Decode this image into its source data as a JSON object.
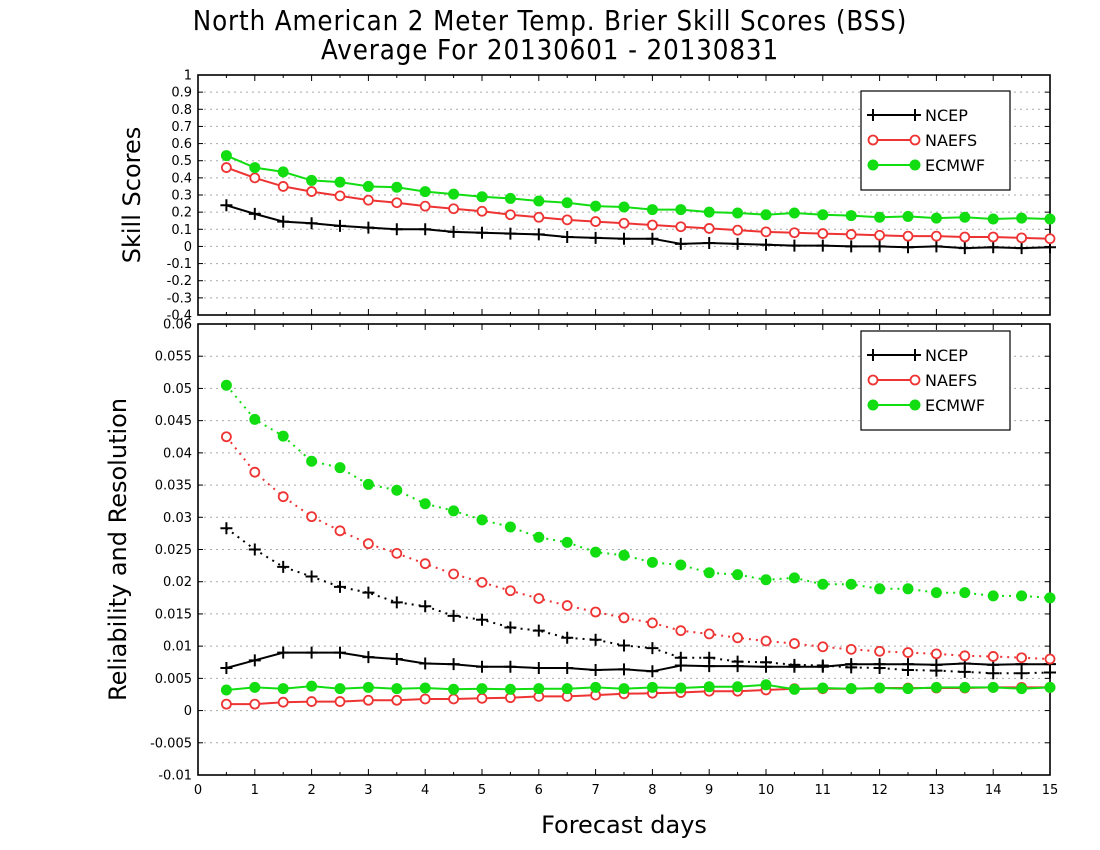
{
  "title_line1": "North American 2 Meter Temp. Brier Skill Scores (BSS)",
  "title_line2": "Average For 20130601 - 20130831",
  "colors": {
    "NCEP": "#000000",
    "NAEFS": "#ee3333",
    "ECMWF": "#11dd11",
    "grid": "#aaaaaa"
  },
  "chart_data": [
    {
      "type": "line",
      "ylabel": "Skill Scores",
      "xlabel": "",
      "xlim": [
        0,
        15
      ],
      "ylim": [
        -0.4,
        1
      ],
      "yticks": [
        "-0.4",
        "-0.3",
        "-0.2",
        "-0.1",
        "0",
        "0.1",
        "0.2",
        "0.3",
        "0.4",
        "0.5",
        "0.6",
        "0.7",
        "0.8",
        "0.9",
        "1"
      ],
      "grid": true,
      "legend": "top-right",
      "x": [
        0.5,
        1,
        1.5,
        2,
        2.5,
        3,
        3.5,
        4,
        4.5,
        5,
        5.5,
        6,
        6.5,
        7,
        7.5,
        8,
        8.5,
        9,
        9.5,
        10,
        10.5,
        11,
        11.5,
        12,
        12.5,
        13,
        13.5,
        14,
        14.5,
        15
      ],
      "series": [
        {
          "name": "NCEP",
          "marker": "plus",
          "style": "solid",
          "values": [
            0.24,
            0.19,
            0.145,
            0.135,
            0.12,
            0.11,
            0.1,
            0.1,
            0.085,
            0.08,
            0.075,
            0.07,
            0.055,
            0.05,
            0.045,
            0.045,
            0.015,
            0.02,
            0.015,
            0.01,
            0.005,
            0.005,
            0.0,
            0.0,
            -0.005,
            0.0,
            -0.01,
            -0.005,
            -0.01,
            -0.005
          ]
        },
        {
          "name": "NAEFS",
          "marker": "open-circle",
          "style": "solid",
          "values": [
            0.46,
            0.4,
            0.35,
            0.32,
            0.295,
            0.27,
            0.255,
            0.235,
            0.22,
            0.205,
            0.185,
            0.17,
            0.155,
            0.145,
            0.135,
            0.125,
            0.115,
            0.105,
            0.095,
            0.085,
            0.08,
            0.075,
            0.07,
            0.065,
            0.06,
            0.06,
            0.055,
            0.055,
            0.05,
            0.045
          ]
        },
        {
          "name": "ECMWF",
          "marker": "filled-circle",
          "style": "solid",
          "values": [
            0.53,
            0.46,
            0.435,
            0.385,
            0.375,
            0.35,
            0.345,
            0.32,
            0.305,
            0.29,
            0.28,
            0.265,
            0.255,
            0.235,
            0.23,
            0.215,
            0.215,
            0.2,
            0.195,
            0.185,
            0.195,
            0.185,
            0.18,
            0.17,
            0.175,
            0.165,
            0.17,
            0.16,
            0.165,
            0.16
          ]
        }
      ]
    },
    {
      "type": "line",
      "ylabel": "Reliability and Resolution",
      "xlabel": "Forecast days",
      "xlim": [
        0,
        15
      ],
      "ylim": [
        -0.01,
        0.06
      ],
      "yticks": [
        "-0.01",
        "-0.005",
        "0",
        "0.005",
        "0.01",
        "0.015",
        "0.02",
        "0.025",
        "0.03",
        "0.035",
        "0.04",
        "0.045",
        "0.05",
        "0.055",
        "0.06"
      ],
      "xticks": [
        "0",
        "1",
        "2",
        "3",
        "4",
        "5",
        "6",
        "7",
        "8",
        "9",
        "10",
        "11",
        "12",
        "13",
        "14",
        "15"
      ],
      "grid": true,
      "legend": "top-right",
      "x": [
        0.5,
        1,
        1.5,
        2,
        2.5,
        3,
        3.5,
        4,
        4.5,
        5,
        5.5,
        6,
        6.5,
        7,
        7.5,
        8,
        8.5,
        9,
        9.5,
        10,
        10.5,
        11,
        11.5,
        12,
        12.5,
        13,
        13.5,
        14,
        14.5,
        15
      ],
      "series": [
        {
          "name": "NCEP",
          "role": "resolution",
          "marker": "plus",
          "style": "dotted",
          "values": [
            0.0283,
            0.025,
            0.0223,
            0.0208,
            0.0192,
            0.0183,
            0.0168,
            0.0162,
            0.0147,
            0.0141,
            0.0129,
            0.0124,
            0.0113,
            0.011,
            0.0101,
            0.0097,
            0.0082,
            0.0082,
            0.0076,
            0.0075,
            0.0071,
            0.007,
            0.0067,
            0.0066,
            0.0063,
            0.0062,
            0.006,
            0.0058,
            0.0058,
            0.0059
          ]
        },
        {
          "name": "NCEP",
          "role": "reliability",
          "marker": "plus",
          "style": "solid",
          "values": [
            0.0066,
            0.0078,
            0.009,
            0.009,
            0.009,
            0.0083,
            0.008,
            0.0073,
            0.0072,
            0.0068,
            0.0068,
            0.0066,
            0.0066,
            0.0063,
            0.0064,
            0.0061,
            0.007,
            0.0069,
            0.0069,
            0.0068,
            0.0068,
            0.0068,
            0.0072,
            0.0072,
            0.0072,
            0.0071,
            0.0073,
            0.0071,
            0.0072,
            0.0072
          ]
        },
        {
          "name": "NAEFS",
          "role": "resolution",
          "marker": "open-circle",
          "style": "dotted",
          "values": [
            0.0425,
            0.037,
            0.0332,
            0.0301,
            0.0279,
            0.0259,
            0.0244,
            0.0228,
            0.0212,
            0.0199,
            0.0186,
            0.0174,
            0.0163,
            0.0153,
            0.0144,
            0.0136,
            0.0124,
            0.0119,
            0.0113,
            0.0108,
            0.0104,
            0.0099,
            0.0095,
            0.0092,
            0.009,
            0.0088,
            0.0085,
            0.0084,
            0.0082,
            0.008
          ]
        },
        {
          "name": "NAEFS",
          "role": "reliability",
          "marker": "open-circle",
          "style": "solid",
          "values": [
            0.001,
            0.001,
            0.0013,
            0.0014,
            0.0014,
            0.0016,
            0.0016,
            0.0018,
            0.0018,
            0.0019,
            0.002,
            0.0022,
            0.0022,
            0.0024,
            0.0026,
            0.0027,
            0.0028,
            0.003,
            0.003,
            0.0032,
            0.0034,
            0.0034,
            0.0034,
            0.0035,
            0.0035,
            0.0035,
            0.0035,
            0.0036,
            0.0036,
            0.0036
          ]
        },
        {
          "name": "ECMWF",
          "role": "resolution",
          "marker": "filled-circle",
          "style": "dotted",
          "values": [
            0.0505,
            0.0452,
            0.0426,
            0.0387,
            0.0377,
            0.0351,
            0.0342,
            0.0321,
            0.031,
            0.0296,
            0.0285,
            0.0269,
            0.0261,
            0.0246,
            0.0241,
            0.023,
            0.0226,
            0.0214,
            0.0211,
            0.0203,
            0.0206,
            0.0196,
            0.0196,
            0.0189,
            0.0189,
            0.0183,
            0.0183,
            0.0178,
            0.0178,
            0.0175
          ]
        },
        {
          "name": "ECMWF",
          "role": "reliability",
          "marker": "filled-circle",
          "style": "solid",
          "values": [
            0.0032,
            0.0036,
            0.0034,
            0.0038,
            0.0034,
            0.0036,
            0.0034,
            0.0035,
            0.0033,
            0.0034,
            0.0033,
            0.0034,
            0.0034,
            0.0036,
            0.0034,
            0.0036,
            0.0035,
            0.0037,
            0.0037,
            0.004,
            0.0033,
            0.0035,
            0.0034,
            0.0035,
            0.0034,
            0.0036,
            0.0036,
            0.0036,
            0.0034,
            0.0036
          ]
        }
      ]
    }
  ],
  "legend": [
    {
      "label": "NCEP"
    },
    {
      "label": "NAEFS"
    },
    {
      "label": "ECMWF"
    }
  ]
}
